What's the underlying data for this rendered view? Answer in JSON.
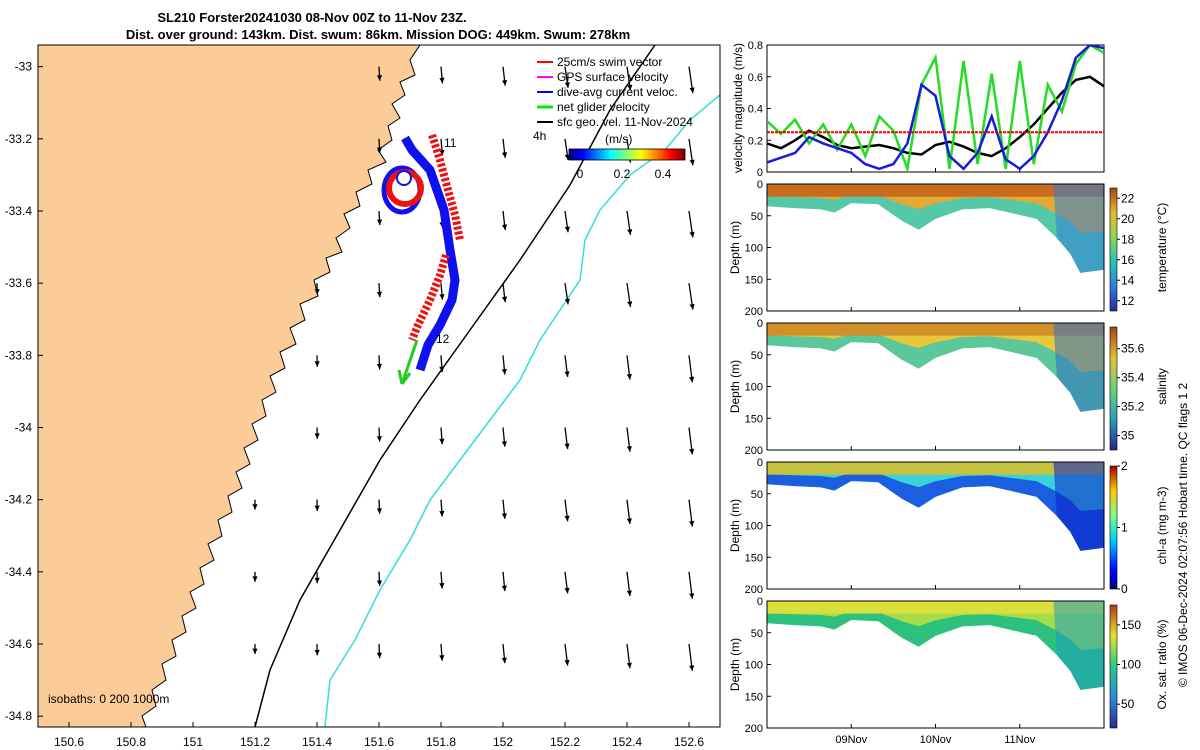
{
  "chart_data": [
    {
      "type": "map",
      "title": "SL210 Forster20241030 08-Nov 00Z to 11-Nov 23Z.",
      "subtitle": "Dist. over ground: 143km. Dist. swum: 86km. Mission DOG: 449km. Swum: 278km",
      "x_ticks": [
        "150.6",
        "150.8",
        "151",
        "151.2",
        "151.4",
        "151.6",
        "151.8",
        "152",
        "152.2",
        "152.4",
        "152.6"
      ],
      "y_ticks": [
        "-33",
        "-33.2",
        "-33.4",
        "-33.6",
        "-33.8",
        "-34",
        "-34.2",
        "-34.4",
        "-34.6",
        "-34.8"
      ],
      "xlim": [
        150.5,
        152.7
      ],
      "ylim": [
        -34.83,
        -32.94
      ],
      "legend": [
        {
          "label": "25cm/s swim vector",
          "color": "#ff0000"
        },
        {
          "label": "GPS surface velocity",
          "color": "#ff00ff"
        },
        {
          "label": "dive-avg current veloc.",
          "color": "#0000ff"
        },
        {
          "label": "net glider velocity",
          "color": "#00ee00"
        },
        {
          "label": "sfc geo. vel. 11-Nov-2024",
          "color": "#000000"
        }
      ],
      "colorbar": {
        "label": "(m/s)",
        "ticks": [
          "0",
          "0.2",
          "0.4"
        ],
        "range": [
          0,
          0.5
        ]
      },
      "annotations": {
        "time_label": "4h",
        "day_marks": [
          "11",
          "12"
        ],
        "isobaths": "isobaths: 0   200  1000m"
      }
    },
    {
      "type": "line",
      "ylabel": "velocity magnitude (m/s)",
      "yticks": [
        "0",
        "0.2",
        "0.4",
        "0.6",
        "0.8"
      ],
      "ylim": [
        0,
        0.8
      ],
      "x": [
        0,
        4,
        8,
        12,
        16,
        20,
        24,
        28,
        32,
        36,
        40,
        44,
        48,
        52,
        56,
        60,
        64,
        68,
        72,
        76,
        80,
        84,
        88,
        92,
        96
      ],
      "series": [
        {
          "name": "black",
          "color": "#000000",
          "values": [
            0.18,
            0.15,
            0.2,
            0.26,
            0.22,
            0.17,
            0.15,
            0.16,
            0.17,
            0.15,
            0.12,
            0.11,
            0.17,
            0.19,
            0.16,
            0.12,
            0.1,
            0.15,
            0.22,
            0.3,
            0.4,
            0.5,
            0.58,
            0.6,
            0.54
          ]
        },
        {
          "name": "green",
          "color": "#22dd22",
          "values": [
            0.32,
            0.24,
            0.33,
            0.18,
            0.3,
            0.14,
            0.3,
            0.1,
            0.35,
            0.26,
            0.02,
            0.55,
            0.72,
            0.02,
            0.7,
            0.05,
            0.62,
            0.02,
            0.7,
            0.05,
            0.55,
            0.38,
            0.68,
            0.8,
            0.75
          ]
        },
        {
          "name": "blue",
          "color": "#1a1adf",
          "values": [
            0.06,
            0.09,
            0.12,
            0.22,
            0.18,
            0.15,
            0.12,
            0.05,
            0.02,
            0.05,
            0.18,
            0.55,
            0.48,
            0.1,
            0.02,
            0.12,
            0.35,
            0.08,
            0.02,
            0.1,
            0.25,
            0.45,
            0.72,
            0.8,
            0.78
          ]
        },
        {
          "name": "red",
          "color": "#ee0000",
          "values": [
            0.25,
            0.25,
            0.25,
            0.25,
            0.25,
            0.25,
            0.25,
            0.25,
            0.25,
            0.25,
            0.25,
            0.25,
            0.25,
            0.25,
            0.25,
            0.25,
            0.25,
            0.25,
            0.25,
            0.25,
            0.25,
            0.25,
            0.25,
            0.25,
            0.25
          ]
        }
      ]
    },
    {
      "type": "heatmap",
      "ylabel": "Depth (m)",
      "yticks": [
        "0",
        "50",
        "100",
        "150",
        "200"
      ],
      "ylim": [
        200,
        0
      ],
      "colorbar_label": "temperature (°C)",
      "colorbar_ticks": [
        "12",
        "14",
        "16",
        "18",
        "20",
        "22"
      ],
      "crange": [
        11,
        23
      ]
    },
    {
      "type": "heatmap",
      "ylabel": "Depth (m)",
      "yticks": [
        "0",
        "50",
        "100",
        "150",
        "200"
      ],
      "ylim": [
        200,
        0
      ],
      "colorbar_label": "salinity",
      "colorbar_ticks": [
        "35",
        "35.2",
        "35.4",
        "35.6"
      ],
      "crange": [
        34.9,
        35.75
      ]
    },
    {
      "type": "heatmap",
      "ylabel": "Depth (m)",
      "yticks": [
        "0",
        "50",
        "100",
        "150",
        "200"
      ],
      "ylim": [
        200,
        0
      ],
      "colorbar_label": "chl-a (mg m-3)",
      "colorbar_ticks": [
        "0",
        "1",
        "2"
      ],
      "crange": [
        0,
        2
      ]
    },
    {
      "type": "heatmap",
      "ylabel": "Depth (m)",
      "yticks": [
        "0",
        "50",
        "100",
        "150",
        "200"
      ],
      "ylim": [
        200,
        0
      ],
      "colorbar_label": "Ox. sat. ratio (%)",
      "colorbar_ticks": [
        "50",
        "100",
        "150"
      ],
      "crange": [
        20,
        175
      ]
    }
  ],
  "time_axis": {
    "ticks": [
      "09Nov",
      "10Nov",
      "11Nov"
    ]
  },
  "side_credit": "© IMOS 06-Dec-2024 02:07:56 Hobart time. QC flags 1  2",
  "colors": {
    "land": "#fbcb98",
    "isobath_200": "#000000",
    "isobath_1000": "#33dddd"
  }
}
